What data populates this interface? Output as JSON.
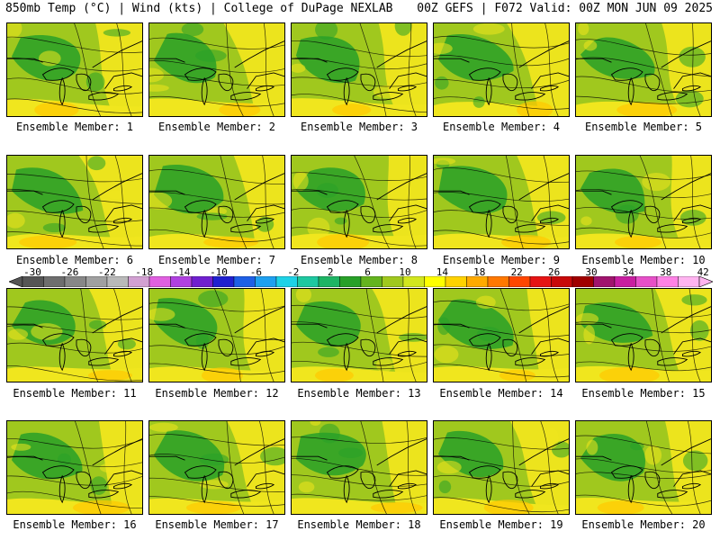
{
  "header": {
    "title": "850mb Temp (°C) | Wind (kts) | College of DuPage NEXLAB",
    "valid": "00Z GEFS | F072 Valid: 00Z MON JUN 09 2025"
  },
  "members": [
    {
      "label": "Ensemble Member: 1"
    },
    {
      "label": "Ensemble Member: 2"
    },
    {
      "label": "Ensemble Member: 3"
    },
    {
      "label": "Ensemble Member: 4"
    },
    {
      "label": "Ensemble Member: 5"
    },
    {
      "label": "Ensemble Member: 6"
    },
    {
      "label": "Ensemble Member: 7"
    },
    {
      "label": "Ensemble Member: 8"
    },
    {
      "label": "Ensemble Member: 9"
    },
    {
      "label": "Ensemble Member: 10"
    },
    {
      "label": "Ensemble Member: 11"
    },
    {
      "label": "Ensemble Member: 12"
    },
    {
      "label": "Ensemble Member: 13"
    },
    {
      "label": "Ensemble Member: 14"
    },
    {
      "label": "Ensemble Member: 15"
    },
    {
      "label": "Ensemble Member: 16"
    },
    {
      "label": "Ensemble Member: 17"
    },
    {
      "label": "Ensemble Member: 18"
    },
    {
      "label": "Ensemble Member: 19"
    },
    {
      "label": "Ensemble Member: 20"
    }
  ],
  "colorbar": {
    "labels": [
      "-30",
      "-26",
      "-22",
      "-18",
      "-14",
      "-10",
      "-6",
      "-2",
      "2",
      "6",
      "10",
      "14",
      "18",
      "22",
      "26",
      "30",
      "34",
      "38",
      "42"
    ],
    "colors": [
      "#555555",
      "#6e6e6e",
      "#878787",
      "#a0a0a0",
      "#b9b9b9",
      "#d2a0d2",
      "#e060e0",
      "#b040e0",
      "#7020d0",
      "#2020d0",
      "#1e60e6",
      "#1ea0f0",
      "#1ed2e6",
      "#1ec8a0",
      "#1eb464",
      "#28a028",
      "#64b41e",
      "#a0c81e",
      "#d2e61e",
      "#ffff00",
      "#ffd200",
      "#ffaa00",
      "#ff7800",
      "#ff4600",
      "#e61414",
      "#c80a0a",
      "#a00000",
      "#a0146e",
      "#c81ea0",
      "#e650c8",
      "#ff82e6",
      "#ffb4f0"
    ]
  },
  "colors": {
    "warm_yellow": "#f0e61e",
    "mid_green": "#a0c81e",
    "dark_green": "#28a028",
    "orange": "#ffc800",
    "contour": "#000000"
  }
}
